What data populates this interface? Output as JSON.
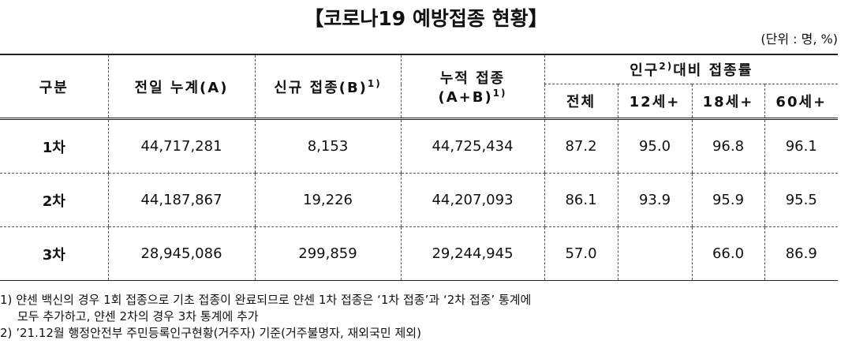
{
  "header": {
    "title": "【코로나19 예방접종 현황】",
    "unit": "(단위 : 명, %)"
  },
  "table": {
    "headers": [
      {
        "text": "구분"
      },
      {
        "text": "전일 누계(A)"
      },
      {
        "text": "신규 접종(B)",
        "sup": "1)"
      },
      {
        "text": "누적 접종",
        "line2": "(A+B)",
        "sup": "1)"
      },
      {
        "text": "인구",
        "sup": "2)",
        "after": "대비 접종률"
      }
    ],
    "subheaders": [
      "전체",
      "12세+",
      "18세+",
      "60세+"
    ],
    "rows": [
      [
        "1차",
        "44,717,281",
        "8,153",
        "44,725,434",
        "87.2",
        "95.0",
        "96.8",
        "96.1"
      ],
      [
        "2차",
        "44,187,867",
        "19,226",
        "44,207,093",
        "86.1",
        "93.9",
        "95.9",
        "95.5"
      ],
      [
        "3차",
        "28,945,086",
        "299,859",
        "29,244,945",
        "57.0",
        null,
        "66.0",
        "86.9"
      ]
    ]
  },
  "footnotes": [
    {
      "mark": "1)",
      "lines": [
        "얀센 백신의 경우 1회 접종으로 기초 접종이 완료되므로 얀센 1차 접종은 ‘1차 접종’과 ‘2차 접종’ 통계에",
        "모두 추가하고, 얀센 2차의 경우 3차 통계에 추가"
      ]
    },
    {
      "mark": "2)",
      "lines": [
        "’21.12월 행정안전부 주민등록인구현황(거주자) 기준(거주불명자, 재외국민 제외)"
      ]
    }
  ]
}
